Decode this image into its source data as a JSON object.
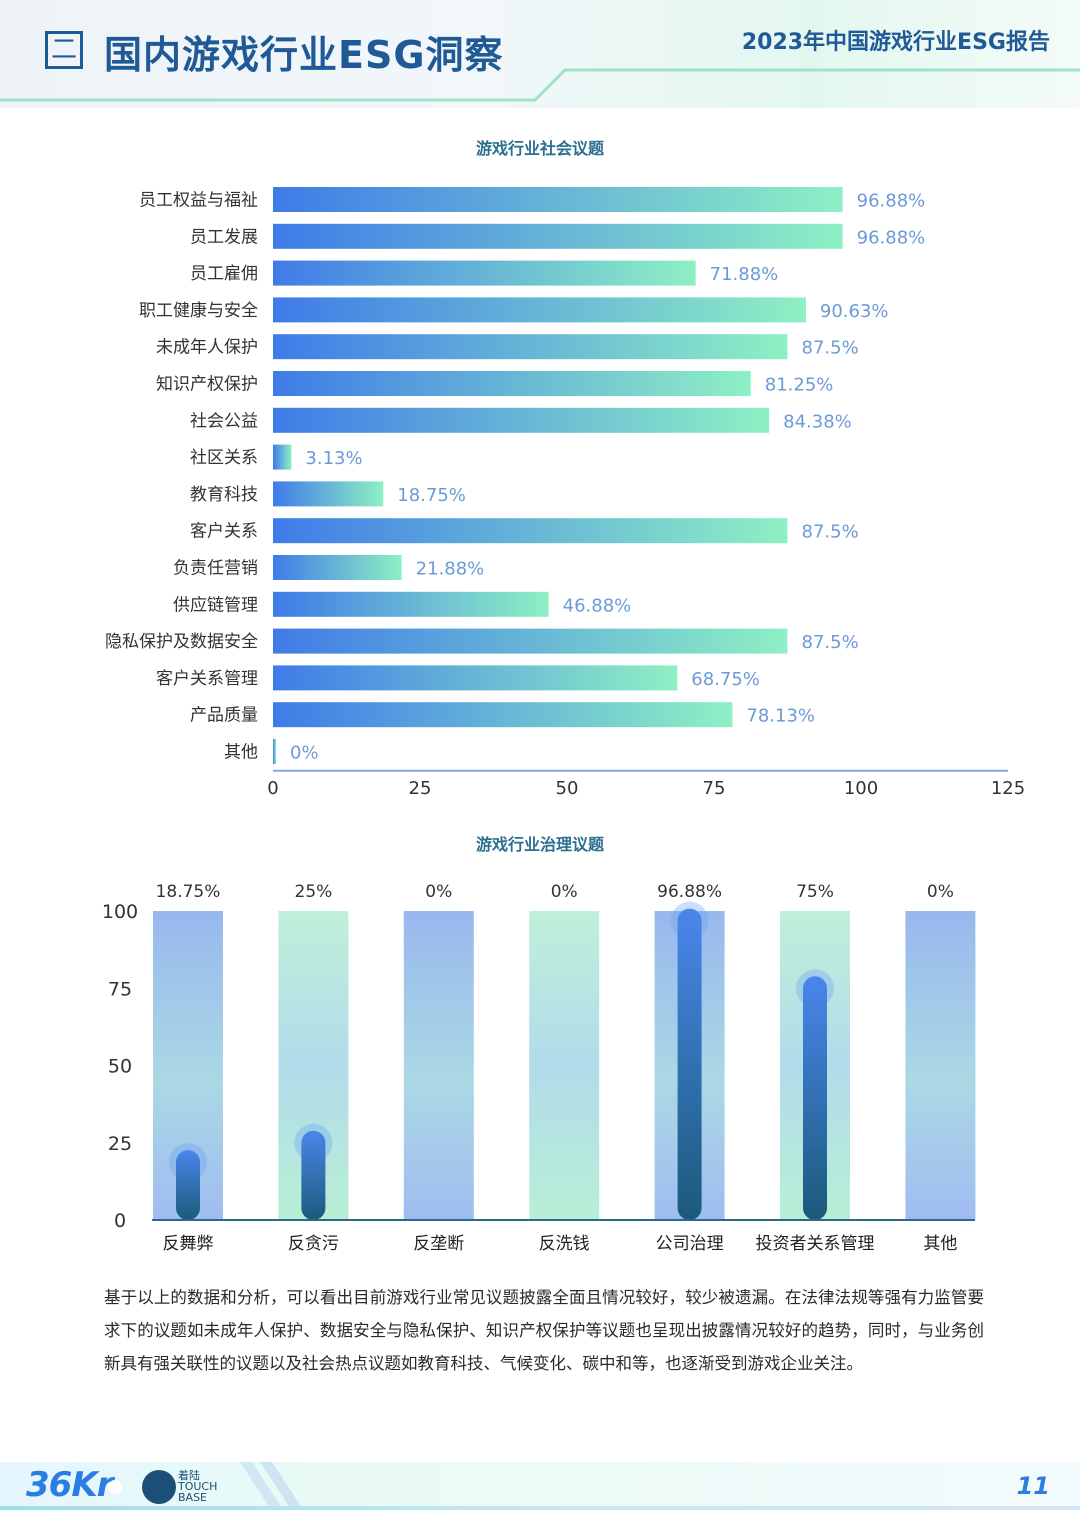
{
  "header": {
    "section_marker": "二",
    "title": "国内游戏行业ESG洞察",
    "report_title": "2023年中国游戏行业ESG报告"
  },
  "colors": {
    "brand_blue": "#1f5a97",
    "bar_gradient_start": "#3f7be8",
    "bar_gradient_end": "#8ef0c4",
    "label_blue": "#6b9ad8"
  },
  "chart_data": [
    {
      "type": "bar",
      "orientation": "horizontal",
      "title": "游戏行业社会议题",
      "categories": [
        "员工权益与福祉",
        "员工发展",
        "员工雇佣",
        "职工健康与安全",
        "未成年人保护",
        "知识产权保护",
        "社会公益",
        "社区关系",
        "教育科技",
        "客户关系",
        "负责任营销",
        "供应链管理",
        "隐私保护及数据安全",
        "客户关系管理",
        "产品质量",
        "其他"
      ],
      "values": [
        96.88,
        96.88,
        71.88,
        90.63,
        87.5,
        81.25,
        84.38,
        3.13,
        18.75,
        87.5,
        21.88,
        46.88,
        87.5,
        68.75,
        78.13,
        0
      ],
      "value_labels": [
        "96.88%",
        "96.88%",
        "71.88%",
        "90.63%",
        "87.5%",
        "81.25%",
        "84.38%",
        "3.13%",
        "18.75%",
        "87.5%",
        "21.88%",
        "46.88%",
        "87.5%",
        "68.75%",
        "78.13%",
        "0%"
      ],
      "xlim": [
        0,
        125
      ],
      "xticks": [
        "0",
        "25",
        "50",
        "75",
        "100",
        "125"
      ],
      "grid": false,
      "legend": "none"
    },
    {
      "type": "bar",
      "orientation": "vertical",
      "title": "游戏行业治理议题",
      "categories": [
        "反舞弊",
        "反贪污",
        "反垄断",
        "反洗钱",
        "公司治理",
        "投资者关系管理",
        "其他"
      ],
      "values": [
        18.75,
        25,
        0,
        0,
        96.88,
        75,
        0
      ],
      "value_labels": [
        "18.75%",
        "25%",
        "0%",
        "0%",
        "96.88%",
        "75%",
        "0%"
      ],
      "ylim": [
        0,
        100
      ],
      "yticks": [
        "0",
        "25",
        "50",
        "75",
        "100"
      ],
      "grid": false,
      "legend": "none"
    }
  ],
  "paragraph": "基于以上的数据和分析，可以看出目前游戏行业常见议题披露全面且情况较好，较少被遗漏。在法律法规等强有力监管要求下的议题如未成年人保护、数据安全与隐私保护、知识产权保护等议题也呈现出披露情况较好的趋势，同时，与业务创新具有强关联性的议题以及社会热点议题如教育科技、气候变化、碳中和等，也逐渐受到游戏企业关注。",
  "footer": {
    "logo_36kr": "36Kr",
    "touchbase_cn": "着陆",
    "touchbase_en1": "TOUCH",
    "touchbase_en2": "BASE",
    "page_number": "11"
  }
}
